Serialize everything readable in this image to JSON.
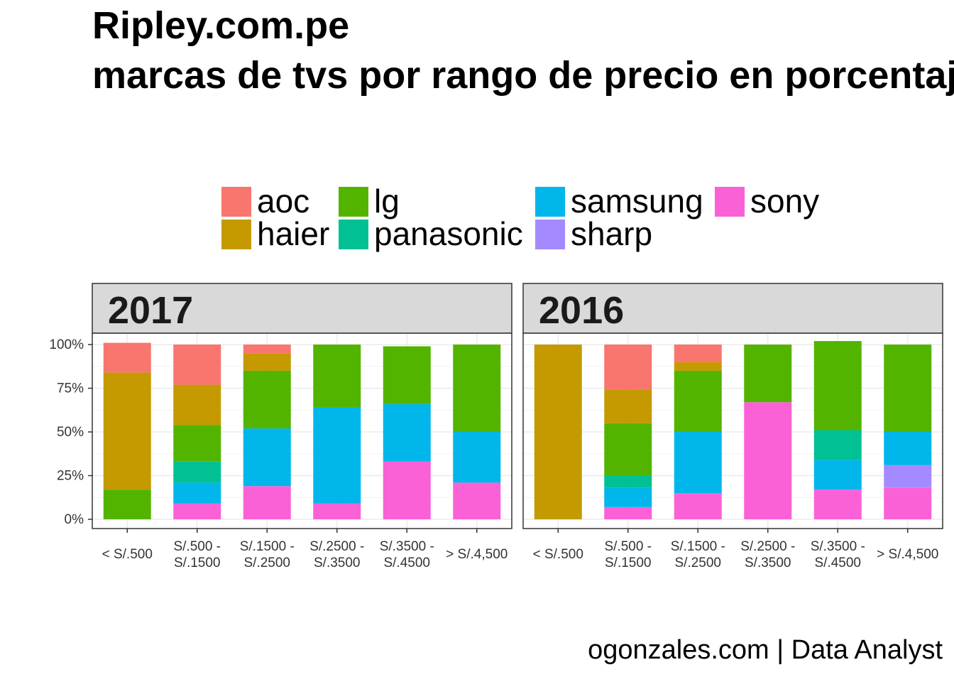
{
  "title_lines": [
    "Ripley.com.pe",
    "marcas de tvs por rango de precio en porcentaje"
  ],
  "caption": "ogonzales.com | Data Analyst",
  "colors": {
    "aoc": "#F8766D",
    "haier": "#C49A00",
    "lg": "#53B400",
    "panasonic": "#00C094",
    "samsung": "#00B6EB",
    "sharp": "#A58AFF",
    "sony": "#FB61D7"
  },
  "legend": {
    "position": "top",
    "entries": [
      "aoc",
      "haier",
      "lg",
      "panasonic",
      "samsung",
      "sharp",
      "sony"
    ]
  },
  "chart_data": {
    "type": "bar",
    "stacked": true,
    "y_format": "percent",
    "ylim": [
      0,
      1
    ],
    "y_ticks": [
      0,
      0.25,
      0.5,
      0.75,
      1
    ],
    "y_tick_labels": [
      "0%",
      "25%",
      "50%",
      "75%",
      "100%"
    ],
    "grid": true,
    "categories": [
      "< S/.500",
      "S/.500 - S/.1500",
      "S/.1500 - S/.2500",
      "S/.2500 - S/.3500",
      "S/.3500 - S/.4500",
      "> S/.4,500"
    ],
    "category_labels": [
      [
        "< S/.500"
      ],
      [
        "S/.500 -",
        "S/.1500"
      ],
      [
        "S/.1500 -",
        "S/.2500"
      ],
      [
        "S/.2500 -",
        "S/.3500"
      ],
      [
        "S/.3500 -",
        "S/.4500"
      ],
      [
        "> S/.4,500"
      ]
    ],
    "stack_order": [
      "sony",
      "sharp",
      "samsung",
      "panasonic",
      "lg",
      "haier",
      "aoc"
    ],
    "panels": [
      {
        "label": "2017",
        "series": [
          {
            "name": "aoc",
            "values": [
              0.17,
              0.23,
              0.05,
              0,
              0,
              0
            ]
          },
          {
            "name": "haier",
            "values": [
              0.67,
              0.23,
              0.1,
              0,
              0,
              0
            ]
          },
          {
            "name": "lg",
            "values": [
              0.17,
              0.21,
              0.33,
              0.36,
              0.33,
              0.5
            ]
          },
          {
            "name": "panasonic",
            "values": [
              0,
              0.12,
              0,
              0,
              0,
              0
            ]
          },
          {
            "name": "samsung",
            "values": [
              0,
              0.12,
              0.33,
              0.55,
              0.33,
              0.29
            ]
          },
          {
            "name": "sharp",
            "values": [
              0,
              0,
              0,
              0,
              0,
              0
            ]
          },
          {
            "name": "sony",
            "values": [
              0,
              0.09,
              0.19,
              0.09,
              0.33,
              0.21
            ]
          }
        ]
      },
      {
        "label": "2016",
        "series": [
          {
            "name": "aoc",
            "values": [
              0,
              0.26,
              0.1,
              0,
              0,
              0
            ]
          },
          {
            "name": "haier",
            "values": [
              1.0,
              0.19,
              0.05,
              0,
              0,
              0
            ]
          },
          {
            "name": "lg",
            "values": [
              0,
              0.3,
              0.35,
              0.33,
              0.51,
              0.5
            ]
          },
          {
            "name": "panasonic",
            "values": [
              0,
              0.07,
              0,
              0,
              0.17,
              0
            ]
          },
          {
            "name": "samsung",
            "values": [
              0,
              0.11,
              0.35,
              0,
              0.17,
              0.19
            ]
          },
          {
            "name": "sharp",
            "values": [
              0,
              0,
              0,
              0,
              0,
              0.13
            ]
          },
          {
            "name": "sony",
            "values": [
              0,
              0.07,
              0.15,
              0.67,
              0.17,
              0.18
            ]
          }
        ]
      }
    ]
  }
}
